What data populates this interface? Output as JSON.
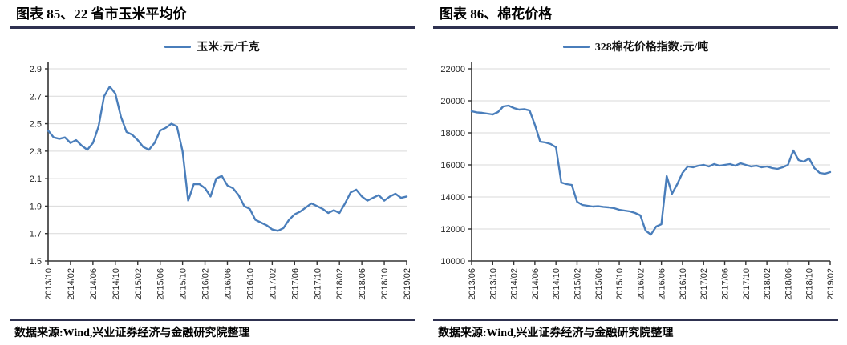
{
  "page": {
    "background": "#ffffff",
    "rule_color": "#2e3150"
  },
  "chart_data": [
    {
      "type": "line",
      "title": "图表 85、22 省市玉米平均价",
      "legend_position": "top-center",
      "grid": "horizontal",
      "line_color": "#4a7ebb",
      "x_frequency": "monthly",
      "x_start": "2013/10",
      "x_tick_labels": [
        "2013/10",
        "2014/02",
        "2014/06",
        "2014/10",
        "2015/02",
        "2015/06",
        "2015/10",
        "2016/02",
        "2016/06",
        "2016/10",
        "2017/02",
        "2017/06",
        "2017/10",
        "2018/02",
        "2018/06",
        "2018/10",
        "2019/02"
      ],
      "x_label_every_n_points": 4,
      "ylim": [
        1.5,
        2.9
      ],
      "ytick_step": 0.2,
      "y_decimals": 1,
      "series": [
        {
          "name": "玉米:元/千克",
          "values": [
            2.45,
            2.4,
            2.39,
            2.4,
            2.36,
            2.38,
            2.34,
            2.31,
            2.36,
            2.48,
            2.7,
            2.77,
            2.72,
            2.55,
            2.44,
            2.42,
            2.38,
            2.33,
            2.31,
            2.36,
            2.45,
            2.47,
            2.5,
            2.48,
            2.3,
            1.94,
            2.06,
            2.06,
            2.03,
            1.97,
            2.1,
            2.12,
            2.05,
            2.03,
            1.98,
            1.9,
            1.88,
            1.8,
            1.78,
            1.76,
            1.73,
            1.72,
            1.74,
            1.8,
            1.84,
            1.86,
            1.89,
            1.92,
            1.9,
            1.88,
            1.85,
            1.87,
            1.85,
            1.92,
            2.0,
            2.02,
            1.97,
            1.94,
            1.96,
            1.98,
            1.94,
            1.97,
            1.99,
            1.96,
            1.97
          ]
        }
      ],
      "source": "数据来源:Wind,兴业证券经济与金融研究院整理"
    },
    {
      "type": "line",
      "title": "图表 86、棉花价格",
      "legend_position": "top-center",
      "grid": "horizontal",
      "line_color": "#4a7ebb",
      "x_frequency": "monthly",
      "x_start": "2013/06",
      "x_tick_labels": [
        "2013/06",
        "2013/10",
        "2014/02",
        "2014/06",
        "2014/10",
        "2015/02",
        "2015/06",
        "2015/10",
        "2016/02",
        "2016/06",
        "2016/10",
        "2017/02",
        "2017/06",
        "2017/10",
        "2018/02",
        "2018/06",
        "2018/10",
        "2019/02"
      ],
      "x_label_every_n_points": 4,
      "ylim": [
        10000,
        22000
      ],
      "ytick_step": 2000,
      "y_decimals": 0,
      "series": [
        {
          "name": "328棉花价格指数:元/吨",
          "values": [
            19350,
            19280,
            19250,
            19200,
            19150,
            19300,
            19650,
            19700,
            19550,
            19450,
            19480,
            19400,
            18500,
            17450,
            17400,
            17300,
            17100,
            14900,
            14800,
            14750,
            13700,
            13500,
            13450,
            13400,
            13420,
            13380,
            13350,
            13300,
            13200,
            13150,
            13100,
            13000,
            12850,
            11900,
            11650,
            12150,
            12300,
            15300,
            14200,
            14800,
            15500,
            15900,
            15850,
            15950,
            16000,
            15900,
            16050,
            15950,
            16000,
            16050,
            15950,
            16100,
            16000,
            15900,
            15950,
            15850,
            15900,
            15800,
            15750,
            15850,
            16000,
            16900,
            16300,
            16200,
            16400,
            15800,
            15500,
            15450,
            15550
          ]
        }
      ],
      "source": "数据来源:Wind,兴业证券经济与金融研究院整理"
    }
  ]
}
